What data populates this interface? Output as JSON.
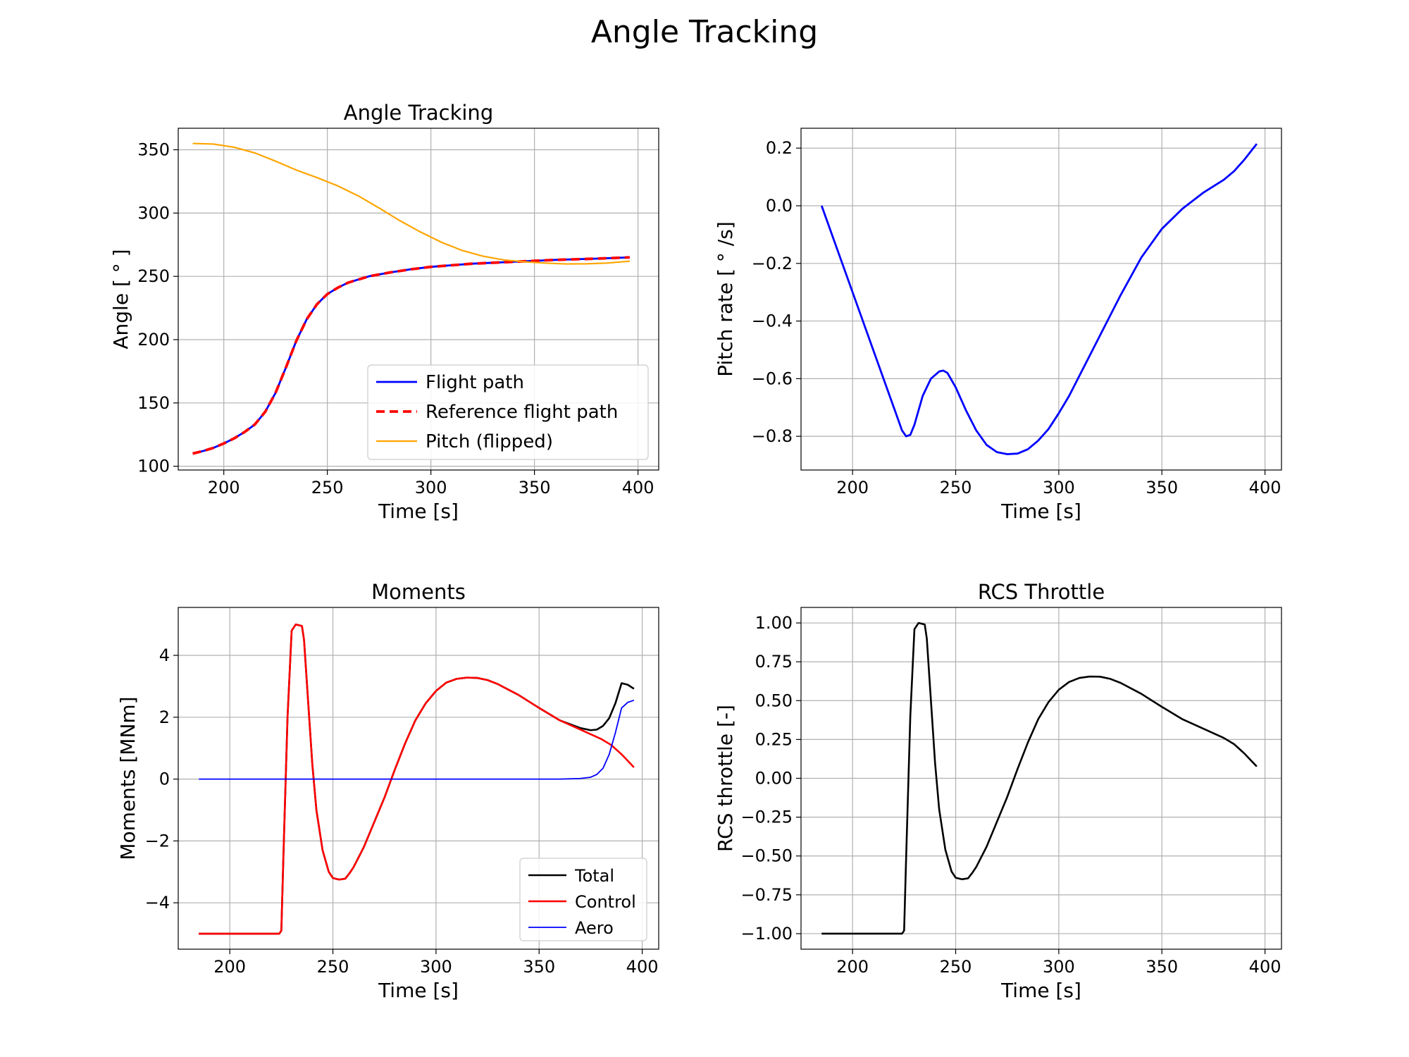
{
  "figure_title": "Angle Tracking",
  "chart_data": [
    {
      "id": "angle",
      "type": "line",
      "title": "Angle Tracking",
      "xlabel": "Time [s]",
      "ylabel": "Angle [ ° ]",
      "xlim": [
        178,
        410
      ],
      "ylim": [
        97,
        367
      ],
      "xticks": [
        200,
        250,
        300,
        350,
        400
      ],
      "yticks": [
        100,
        150,
        200,
        250,
        300,
        350
      ],
      "ytick_labels": [
        "100",
        "150",
        "200",
        "250",
        "300",
        "350"
      ],
      "grid": true,
      "legend": "lower right",
      "series": [
        {
          "name": "Flight path",
          "color": "#0000ff",
          "dash": "",
          "width": 2.8,
          "x": [
            185,
            190,
            195,
            200,
            205,
            210,
            215,
            220,
            225,
            230,
            235,
            240,
            245,
            250,
            255,
            260,
            270,
            280,
            290,
            300,
            320,
            340,
            360,
            380,
            396
          ],
          "y": [
            110,
            112,
            114.5,
            118,
            122,
            127,
            133,
            143,
            158,
            178,
            199,
            216,
            228,
            236,
            241,
            245,
            250,
            253,
            255.5,
            257.5,
            260,
            261.5,
            263,
            264,
            265
          ]
        },
        {
          "name": "Reference flight path",
          "color": "#ff0000",
          "dash": "12,7",
          "width": 3.8,
          "x": [
            185,
            190,
            195,
            200,
            205,
            210,
            215,
            220,
            225,
            230,
            235,
            240,
            245,
            250,
            255,
            260,
            270,
            280,
            290,
            300,
            320,
            340,
            360,
            380,
            396
          ],
          "y": [
            110,
            112,
            114.5,
            118,
            122,
            127,
            133,
            143,
            158,
            178,
            199,
            216,
            228,
            236,
            241,
            245,
            250,
            253,
            255.5,
            257.5,
            260,
            261.5,
            263,
            264,
            265
          ]
        },
        {
          "name": "Pitch (flipped)",
          "color": "#ffa500",
          "dash": "",
          "width": 2.2,
          "x": [
            185,
            195,
            205,
            215,
            225,
            235,
            245,
            255,
            265,
            275,
            285,
            295,
            305,
            315,
            325,
            335,
            345,
            355,
            365,
            375,
            385,
            396
          ],
          "y": [
            355,
            354.5,
            352,
            347.5,
            341,
            334,
            328,
            321.5,
            313.5,
            304,
            294,
            285,
            277,
            270.5,
            266,
            263,
            261.5,
            260.5,
            259.8,
            259.9,
            260.5,
            262
          ]
        }
      ]
    },
    {
      "id": "pitchrate",
      "type": "line",
      "title": "",
      "xlabel": "Time [s]",
      "ylabel": "Pitch rate [ ° /s]",
      "xlim": [
        175,
        408
      ],
      "ylim": [
        -0.917,
        0.269
      ],
      "xticks": [
        200,
        250,
        300,
        350,
        400
      ],
      "yticks": [
        0.2,
        0.0,
        -0.2,
        -0.4,
        -0.6,
        -0.8
      ],
      "ytick_labels": [
        "0.2",
        "0.0",
        "−0.2",
        "−0.4",
        "−0.6",
        "−0.8"
      ],
      "grid": true,
      "legend": "none",
      "series": [
        {
          "name": "",
          "color": "#0000ff",
          "dash": "",
          "width": 2.8,
          "x": [
            185,
            190,
            195,
            200,
            205,
            210,
            215,
            220,
            224,
            226,
            228,
            230,
            234,
            238,
            242,
            244,
            246,
            250,
            255,
            260,
            265,
            270,
            275,
            280,
            285,
            290,
            295,
            300,
            305,
            310,
            320,
            330,
            340,
            350,
            360,
            370,
            380,
            385,
            390,
            396
          ],
          "y": [
            0.0,
            -0.1,
            -0.2,
            -0.3,
            -0.4,
            -0.5,
            -0.6,
            -0.7,
            -0.78,
            -0.8,
            -0.795,
            -0.76,
            -0.66,
            -0.6,
            -0.575,
            -0.572,
            -0.58,
            -0.63,
            -0.71,
            -0.78,
            -0.83,
            -0.855,
            -0.862,
            -0.86,
            -0.845,
            -0.815,
            -0.775,
            -0.72,
            -0.66,
            -0.59,
            -0.45,
            -0.31,
            -0.18,
            -0.08,
            -0.01,
            0.045,
            0.09,
            0.12,
            0.16,
            0.215
          ]
        }
      ]
    },
    {
      "id": "moments",
      "type": "line",
      "title": "Moments",
      "xlabel": "Time [s]",
      "ylabel": "Moments [MNm]",
      "xlim": [
        175,
        408
      ],
      "ylim": [
        -5.5,
        5.55
      ],
      "xticks": [
        200,
        250,
        300,
        350,
        400
      ],
      "yticks": [
        4,
        2,
        0,
        -2,
        -4
      ],
      "ytick_labels": [
        "4",
        "2",
        "0",
        "−2",
        "−4"
      ],
      "grid": true,
      "legend": "lower right",
      "series": [
        {
          "name": "Total",
          "color": "#000000",
          "dash": "",
          "width": 2.6,
          "x": [
            185,
            200,
            215,
            224,
            225,
            226,
            228,
            230,
            232,
            235,
            236,
            238,
            240,
            242,
            245,
            248,
            250,
            253,
            256,
            258,
            260,
            265,
            270,
            275,
            280,
            285,
            290,
            295,
            300,
            305,
            310,
            315,
            320,
            325,
            330,
            340,
            350,
            360,
            370,
            375,
            378,
            381,
            384,
            387,
            390,
            393,
            396
          ],
          "y": [
            -5,
            -5,
            -5,
            -5,
            -4.9,
            -2.5,
            2.0,
            4.8,
            5.0,
            4.95,
            4.5,
            2.5,
            0.5,
            -1.0,
            -2.3,
            -3.0,
            -3.2,
            -3.25,
            -3.22,
            -3.05,
            -2.85,
            -2.2,
            -1.4,
            -0.6,
            0.3,
            1.15,
            1.9,
            2.45,
            2.85,
            3.12,
            3.24,
            3.28,
            3.27,
            3.2,
            3.07,
            2.72,
            2.3,
            1.9,
            1.65,
            1.58,
            1.6,
            1.72,
            1.97,
            2.45,
            3.1,
            3.05,
            2.92
          ]
        },
        {
          "name": "Control",
          "color": "#ff0000",
          "dash": "",
          "width": 2.6,
          "x": [
            185,
            200,
            215,
            224,
            225,
            226,
            228,
            230,
            232,
            235,
            236,
            238,
            240,
            242,
            245,
            248,
            250,
            253,
            256,
            258,
            260,
            265,
            270,
            275,
            280,
            285,
            290,
            295,
            300,
            305,
            310,
            315,
            320,
            325,
            330,
            340,
            350,
            360,
            370,
            375,
            380,
            385,
            390,
            396
          ],
          "y": [
            -5,
            -5,
            -5,
            -5,
            -4.9,
            -2.5,
            2.0,
            4.8,
            5.0,
            4.95,
            4.5,
            2.5,
            0.5,
            -1.0,
            -2.3,
            -3.0,
            -3.2,
            -3.25,
            -3.22,
            -3.05,
            -2.85,
            -2.2,
            -1.4,
            -0.6,
            0.3,
            1.15,
            1.9,
            2.45,
            2.85,
            3.12,
            3.24,
            3.28,
            3.27,
            3.2,
            3.07,
            2.72,
            2.3,
            1.9,
            1.6,
            1.45,
            1.3,
            1.1,
            0.8,
            0.38
          ]
        },
        {
          "name": "Aero",
          "color": "#0000ff",
          "dash": "",
          "width": 1.8,
          "x": [
            185,
            220,
            260,
            300,
            340,
            360,
            370,
            375,
            378,
            381,
            384,
            387,
            390,
            393,
            396
          ],
          "y": [
            0,
            0,
            0,
            0,
            0,
            0,
            0.02,
            0.06,
            0.15,
            0.35,
            0.8,
            1.5,
            2.3,
            2.48,
            2.55
          ]
        }
      ]
    },
    {
      "id": "rcs",
      "type": "line",
      "title": "RCS Throttle",
      "xlabel": "Time [s]",
      "ylabel": "RCS throttle [-]",
      "xlim": [
        175,
        408
      ],
      "ylim": [
        -1.1,
        1.1
      ],
      "xticks": [
        200,
        250,
        300,
        350,
        400
      ],
      "yticks": [
        1.0,
        0.75,
        0.5,
        0.25,
        0.0,
        -0.25,
        -0.5,
        -0.75,
        -1.0
      ],
      "ytick_labels": [
        "1.00",
        "0.75",
        "0.50",
        "0.25",
        "0.00",
        "−0.25",
        "−0.50",
        "−0.75",
        "−1.00"
      ],
      "grid": true,
      "legend": "none",
      "series": [
        {
          "name": "",
          "color": "#000000",
          "dash": "",
          "width": 2.6,
          "x": [
            185,
            200,
            215,
            224,
            225,
            226,
            228,
            230,
            232,
            235,
            236,
            238,
            240,
            242,
            245,
            248,
            250,
            253,
            256,
            258,
            260,
            265,
            270,
            275,
            280,
            285,
            290,
            295,
            300,
            305,
            310,
            315,
            320,
            325,
            330,
            340,
            350,
            360,
            370,
            380,
            385,
            390,
            396
          ],
          "y": [
            -1,
            -1,
            -1,
            -1,
            -0.98,
            -0.5,
            0.4,
            0.96,
            1.0,
            0.99,
            0.9,
            0.5,
            0.1,
            -0.2,
            -0.46,
            -0.6,
            -0.64,
            -0.65,
            -0.644,
            -0.61,
            -0.57,
            -0.44,
            -0.28,
            -0.12,
            0.06,
            0.23,
            0.38,
            0.49,
            0.57,
            0.62,
            0.646,
            0.655,
            0.654,
            0.64,
            0.614,
            0.544,
            0.46,
            0.38,
            0.32,
            0.26,
            0.22,
            0.16,
            0.076
          ]
        }
      ]
    }
  ]
}
